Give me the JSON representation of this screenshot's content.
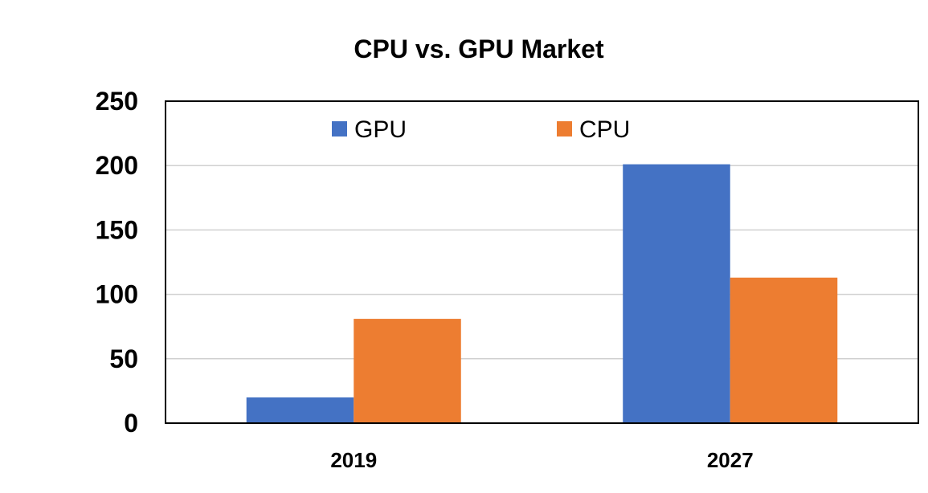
{
  "chart_data": {
    "type": "bar",
    "title": "CPU vs. GPU Market",
    "xlabel": "",
    "ylabel": "",
    "categories": [
      "2019",
      "2027"
    ],
    "series": [
      {
        "name": "GPU",
        "values": [
          20,
          201
        ],
        "color": "#4472C4"
      },
      {
        "name": "CPU",
        "values": [
          81,
          113
        ],
        "color": "#ED7D31"
      }
    ],
    "ylim": [
      0,
      250
    ],
    "yticks": [
      "0",
      "50",
      "100",
      "150",
      "200",
      "250"
    ],
    "grid": true,
    "legend_position": "top-center"
  }
}
